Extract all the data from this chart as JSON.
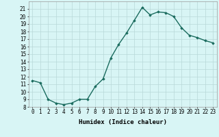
{
  "x": [
    0,
    1,
    2,
    3,
    4,
    5,
    6,
    7,
    8,
    9,
    10,
    11,
    12,
    13,
    14,
    15,
    16,
    17,
    18,
    19,
    20,
    21,
    22,
    23
  ],
  "y": [
    11.5,
    11.2,
    9.0,
    8.5,
    8.3,
    8.5,
    9.0,
    9.0,
    10.7,
    11.7,
    14.5,
    16.3,
    17.8,
    19.5,
    21.2,
    20.2,
    20.6,
    20.5,
    20.0,
    18.5,
    17.5,
    17.2,
    16.8,
    16.5
  ],
  "line_color": "#1a6b5e",
  "marker": "D",
  "marker_size": 1.8,
  "bg_color": "#d8f5f5",
  "grid_color": "#b8d8d8",
  "xlabel": "Humidex (Indice chaleur)",
  "ylim": [
    8,
    22
  ],
  "xlim": [
    -0.5,
    23.5
  ],
  "yticks": [
    8,
    9,
    10,
    11,
    12,
    13,
    14,
    15,
    16,
    17,
    18,
    19,
    20,
    21
  ],
  "xticks": [
    0,
    1,
    2,
    3,
    4,
    5,
    6,
    7,
    8,
    9,
    10,
    11,
    12,
    13,
    14,
    15,
    16,
    17,
    18,
    19,
    20,
    21,
    22,
    23
  ],
  "tick_fontsize": 5.5,
  "xlabel_fontsize": 6.5,
  "linewidth": 1.0
}
